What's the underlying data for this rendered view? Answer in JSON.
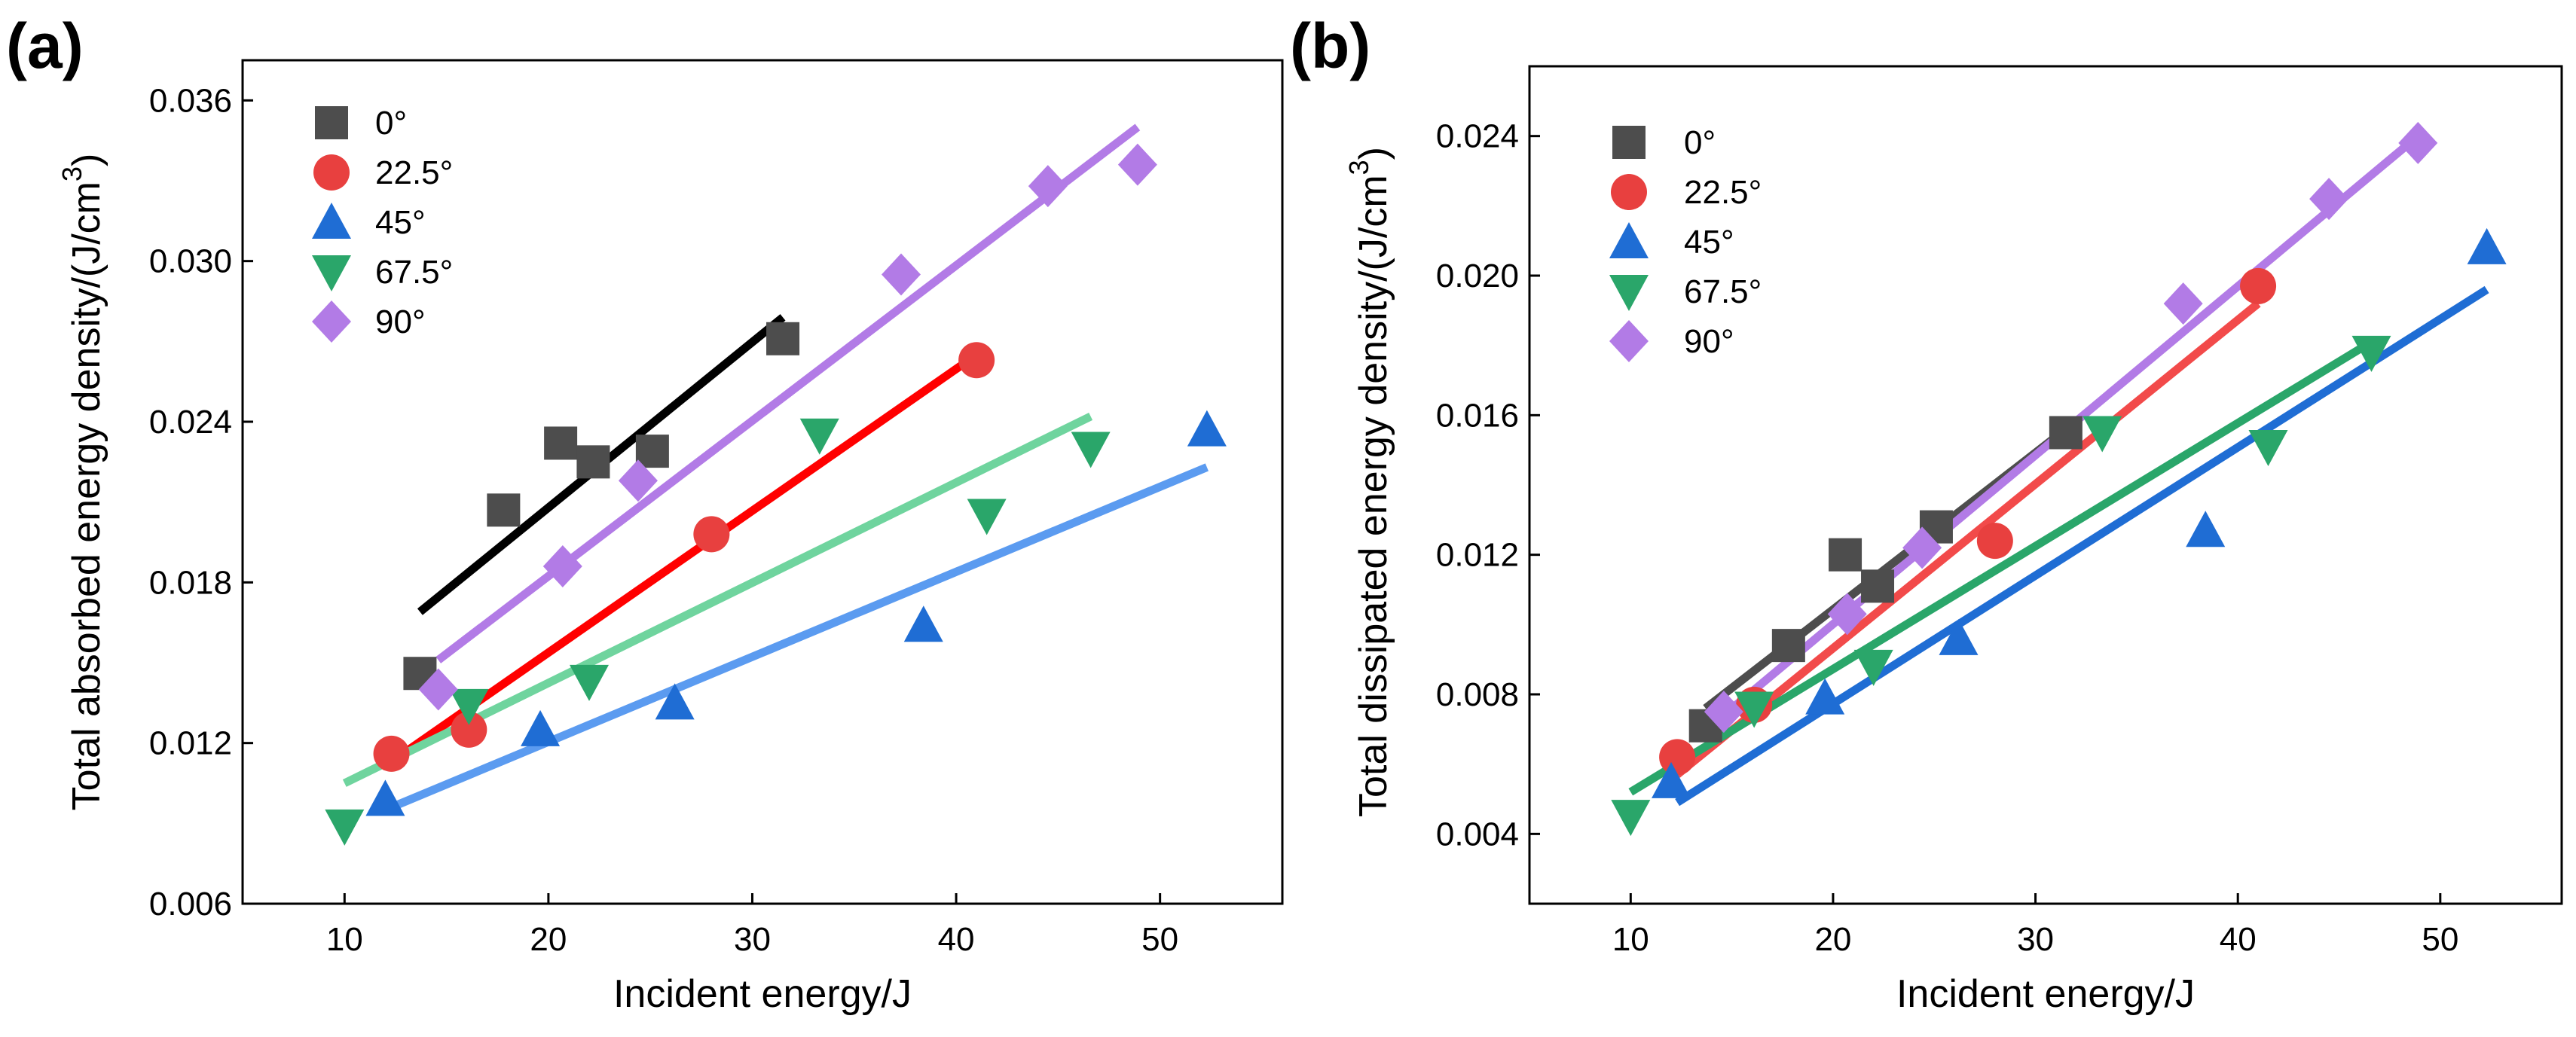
{
  "chart_data": [
    {
      "panel": "(a)",
      "type": "scatter",
      "xlabel": "Incident energy/J",
      "ylabel": "Total absorbed energy density/(J/cm",
      "ylabel_sup": "3",
      "ylabel_end": ")",
      "xlim": [
        5,
        56
      ],
      "ylim": [
        0.006,
        0.0375
      ],
      "xticks": [
        10,
        20,
        30,
        40,
        50
      ],
      "xtick_labels": [
        "10",
        "20",
        "30",
        "40",
        "50"
      ],
      "yticks": [
        0.006,
        0.012,
        0.018,
        0.024,
        0.03,
        0.036
      ],
      "ytick_labels": [
        "0.006",
        "0.012",
        "0.018",
        "0.024",
        "0.030",
        "0.036"
      ],
      "series": [
        {
          "name": "0°",
          "marker": "square",
          "color": "#4d4d4d",
          "x": [
            13.7,
            17.8,
            20.6,
            22.2,
            25.1,
            31.5
          ],
          "y": [
            0.0146,
            0.0207,
            0.0232,
            0.0225,
            0.0229,
            0.0271
          ],
          "fit": {
            "x": [
              13.7,
              31.5
            ],
            "y": [
              0.0169,
              0.0279
            ],
            "color": "#000000"
          }
        },
        {
          "name": "22.5°",
          "marker": "circle",
          "color": "#e8403f",
          "x": [
            12.3,
            16.1,
            28.0,
            41.0
          ],
          "y": [
            0.0116,
            0.0125,
            0.0198,
            0.0263
          ],
          "fit": {
            "x": [
              12.3,
              41.0
            ],
            "y": [
              0.0113,
              0.0265
            ],
            "color": "#ff0000"
          }
        },
        {
          "name": "45°",
          "marker": "triangle-up",
          "color": "#1f6dd4",
          "x": [
            12.0,
            19.6,
            26.2,
            38.4,
            52.3
          ],
          "y": [
            0.0099,
            0.0125,
            0.0135,
            0.0164,
            0.0237
          ],
          "fit": {
            "x": [
              12.3,
              52.3
            ],
            "y": [
              0.0096,
              0.0223
            ],
            "color": "#5b9bf0"
          }
        },
        {
          "name": "67.5°",
          "marker": "triangle-down",
          "color": "#2aa66a",
          "x": [
            10.0,
            16.1,
            22.0,
            33.3,
            41.5,
            46.6
          ],
          "y": [
            0.0089,
            0.0134,
            0.0143,
            0.0235,
            0.0205,
            0.023
          ],
          "fit": {
            "x": [
              10.0,
              46.6
            ],
            "y": [
              0.0105,
              0.0242
            ],
            "color": "#6fd49e"
          }
        },
        {
          "name": "90°",
          "marker": "diamond",
          "color": "#b27be6",
          "x": [
            14.6,
            20.7,
            24.4,
            37.3,
            44.5,
            48.9
          ],
          "y": [
            0.014,
            0.0186,
            0.0218,
            0.0295,
            0.0328,
            0.0336
          ],
          "fit": {
            "x": [
              14.6,
              48.9
            ],
            "y": [
              0.0151,
              0.035
            ],
            "color": "#b27be6"
          }
        }
      ]
    },
    {
      "panel": "(b)",
      "type": "scatter",
      "xlabel": "Incident energy/J",
      "ylabel": "Total dissipated energy density/(J/cm",
      "ylabel_sup": "3",
      "ylabel_end": ")",
      "xlim": [
        5,
        56
      ],
      "ylim": [
        0.002,
        0.026
      ],
      "xticks": [
        10,
        20,
        30,
        40,
        50
      ],
      "xtick_labels": [
        "10",
        "20",
        "30",
        "40",
        "50"
      ],
      "yticks": [
        0.004,
        0.008,
        0.012,
        0.016,
        0.02,
        0.024
      ],
      "ytick_labels": [
        "0.004",
        "0.008",
        "0.012",
        "0.016",
        "0.020",
        "0.024"
      ],
      "series": [
        {
          "name": "0°",
          "marker": "square",
          "color": "#4d4d4d",
          "x": [
            13.7,
            17.8,
            20.6,
            22.2,
            25.1,
            31.5
          ],
          "y": [
            0.0071,
            0.0094,
            0.012,
            0.0111,
            0.0128,
            0.0155
          ],
          "fit": {
            "x": [
              13.7,
              31.5
            ],
            "y": [
              0.0076,
              0.0156
            ],
            "color": "#4d4d4d"
          }
        },
        {
          "name": "22.5°",
          "marker": "circle",
          "color": "#e8403f",
          "x": [
            12.3,
            16.1,
            28.0,
            41.0
          ],
          "y": [
            0.0062,
            0.0077,
            0.0124,
            0.0197
          ],
          "fit": {
            "x": [
              12.3,
              41.0
            ],
            "y": [
              0.0057,
              0.0192
            ],
            "color": "#f24a4a"
          }
        },
        {
          "name": "45°",
          "marker": "triangle-up",
          "color": "#1f6dd4",
          "x": [
            12.0,
            19.6,
            26.2,
            38.4,
            52.3
          ],
          "y": [
            0.0055,
            0.0079,
            0.0096,
            0.0127,
            0.0208
          ],
          "fit": {
            "x": [
              12.3,
              52.3
            ],
            "y": [
              0.0049,
              0.0196
            ],
            "color": "#1f6dd4"
          }
        },
        {
          "name": "67.5°",
          "marker": "triangle-down",
          "color": "#2aa66a",
          "x": [
            10.0,
            16.1,
            22.0,
            33.3,
            41.5,
            46.6
          ],
          "y": [
            0.0045,
            0.0076,
            0.0088,
            0.0155,
            0.0151,
            0.0178
          ],
          "fit": {
            "x": [
              10.0,
              46.6
            ],
            "y": [
              0.0052,
              0.0181
            ],
            "color": "#2aa66a"
          }
        },
        {
          "name": "90°",
          "marker": "diamond",
          "color": "#b27be6",
          "x": [
            14.6,
            20.7,
            24.4,
            37.3,
            44.5,
            48.9
          ],
          "y": [
            0.0075,
            0.0103,
            0.0122,
            0.0192,
            0.0222,
            0.0238
          ],
          "fit": {
            "x": [
              14.6,
              48.9
            ],
            "y": [
              0.0074,
              0.024
            ],
            "color": "#b27be6"
          }
        }
      ]
    }
  ]
}
